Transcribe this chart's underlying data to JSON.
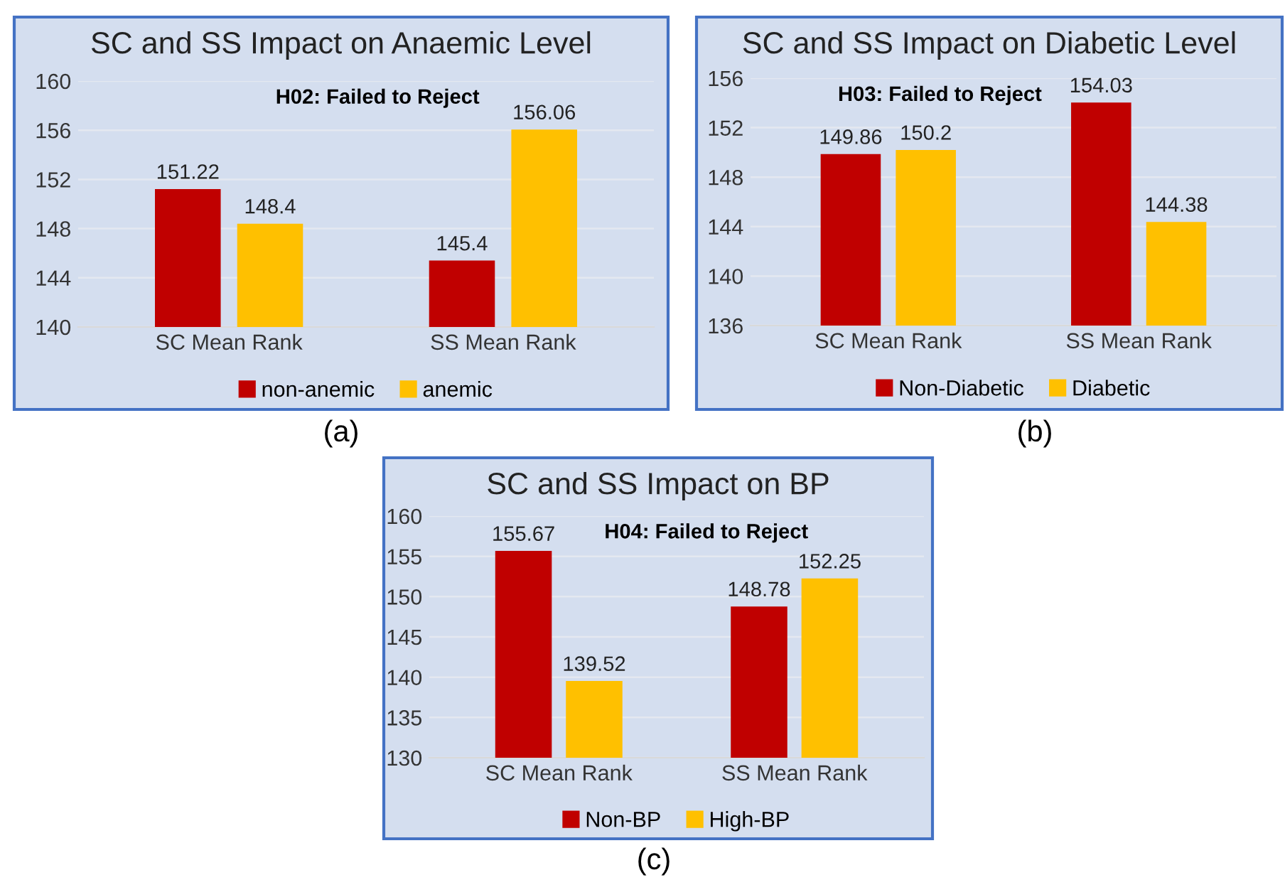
{
  "chart_data": [
    {
      "type": "bar",
      "title": "SC and SS Impact on Anaemic Level",
      "annotations": [
        "H02: Failed to Reject",
        "(a)"
      ],
      "categories": [
        "SC Mean Rank",
        "SS Mean Rank"
      ],
      "series": [
        {
          "name": "non-anemic",
          "color": "#c00000",
          "values": [
            151.22,
            145.4
          ]
        },
        {
          "name": "anemic",
          "color": "#ffc000",
          "values": [
            148.4,
            156.06
          ]
        }
      ],
      "ylim": [
        140,
        160
      ],
      "yticks": [
        140,
        144,
        148,
        152,
        156,
        160
      ],
      "grid": "y",
      "legend": "bottom",
      "data_labels": true
    },
    {
      "type": "bar",
      "title": "SC and SS Impact on Diabetic Level",
      "annotations": [
        "H03: Failed to Reject",
        "(b)"
      ],
      "categories": [
        "SC Mean Rank",
        "SS Mean Rank"
      ],
      "series": [
        {
          "name": "Non-Diabetic",
          "color": "#c00000",
          "values": [
            149.86,
            154.03
          ]
        },
        {
          "name": "Diabetic",
          "color": "#ffc000",
          "values": [
            150.2,
            144.38
          ]
        }
      ],
      "ylim": [
        136,
        156
      ],
      "yticks": [
        136,
        140,
        144,
        148,
        152,
        156
      ],
      "grid": "y",
      "legend": "bottom",
      "data_labels": true
    },
    {
      "type": "bar",
      "title": "SC and SS Impact on BP",
      "annotations": [
        "H04: Failed to Reject",
        "(c)"
      ],
      "categories": [
        "SC Mean Rank",
        "SS Mean Rank"
      ],
      "series": [
        {
          "name": "Non-BP",
          "color": "#c00000",
          "values": [
            155.67,
            148.78
          ]
        },
        {
          "name": "High-BP",
          "color": "#ffc000",
          "values": [
            139.52,
            152.25
          ]
        }
      ],
      "ylim": [
        130,
        160
      ],
      "yticks": [
        130,
        135,
        140,
        145,
        150,
        155,
        160
      ],
      "grid": "y",
      "legend": "bottom",
      "data_labels": true
    }
  ]
}
